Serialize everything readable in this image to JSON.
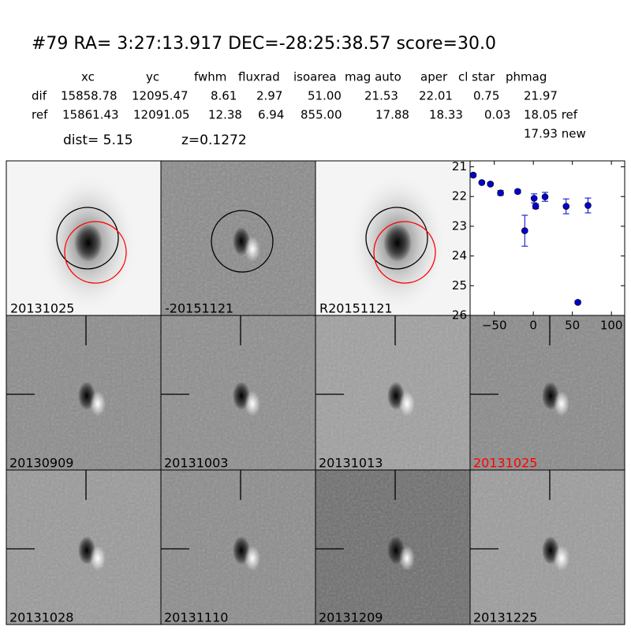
{
  "header": {
    "title": "#79   RA= 3:27:13.917 DEC=-28:25:38.57       score=30.0"
  },
  "table": {
    "columns": [
      "xc",
      "yc",
      "fwhm",
      "fluxrad",
      "isoarea",
      "mag auto",
      "aper",
      "cl star",
      "phmag"
    ],
    "rows": [
      [
        "dif",
        "15858.78",
        "12095.47",
        "8.61",
        "2.97",
        "51.00",
        "21.53",
        "22.01",
        "0.75",
        "21.97"
      ],
      [
        "ref",
        "15861.43",
        "12091.05",
        "12.38",
        "6.94",
        "855.00",
        "17.88",
        "18.33",
        "0.03",
        "18.05 ref"
      ]
    ],
    "extra": "17.93 new"
  },
  "dist": "dist=  5.15",
  "z": "z=0.1272",
  "top_panels": [
    {
      "label": "20131025"
    },
    {
      "label": "-20151121"
    },
    {
      "label": "R20151121"
    }
  ],
  "stamps": [
    {
      "label": "20130909"
    },
    {
      "label": "20131003"
    },
    {
      "label": "20131013"
    },
    {
      "label": "20131025",
      "color": "#ff0000"
    },
    {
      "label": "20131028"
    },
    {
      "label": "20131110"
    },
    {
      "label": "20131209"
    },
    {
      "label": "20131225"
    }
  ],
  "chart_data": {
    "type": "scatter",
    "x": [
      -77,
      -66,
      -55,
      -42,
      -20,
      -11,
      1,
      3,
      15,
      42,
      57,
      70
    ],
    "series": [
      {
        "color": "#0000cc",
        "values": [
          21.28,
          21.53,
          21.58,
          21.88,
          21.83,
          23.15,
          22.06,
          22.33,
          22.01,
          22.33,
          25.56,
          22.3
        ],
        "errors": [
          0.05,
          0.04,
          0.05,
          0.08,
          0.06,
          0.52,
          0.15,
          0.08,
          0.15,
          0.25,
          0.05,
          0.25
        ]
      }
    ],
    "xlim": [
      -81,
      117
    ],
    "ylim": [
      20.8,
      26
    ],
    "y_inverted": true,
    "xticks": [
      {
        "value": -50,
        "label": "−50"
      },
      0,
      50,
      100
    ],
    "yticks": [
      21,
      22,
      23,
      24,
      25,
      26
    ]
  }
}
